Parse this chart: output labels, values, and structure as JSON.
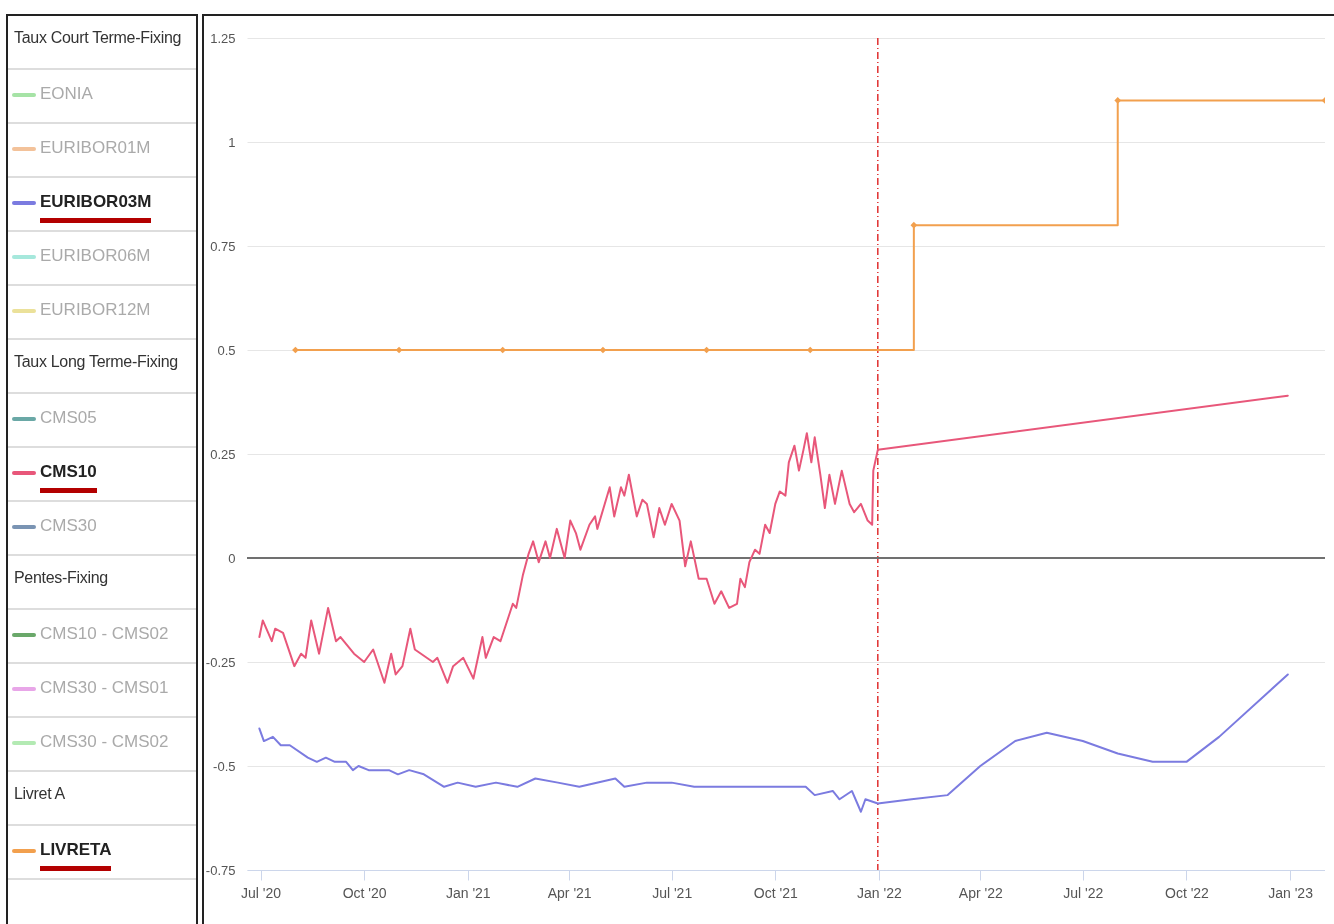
{
  "chart_data": {
    "type": "line",
    "legend": "left",
    "grid": "y",
    "annotations": [
      "Taux Court Terme-Fixing",
      "Taux Long Terme-Fixing",
      "Pentes-Fixing",
      "Livret A"
    ],
    "xlim": [
      "2020-06-19",
      "2023-02-01"
    ],
    "xticks": [
      {
        "value": "2020-07-01",
        "label": "Jul '20"
      },
      {
        "value": "2020-10-01",
        "label": "Oct '20"
      },
      {
        "value": "2021-01-01",
        "label": "Jan '21"
      },
      {
        "value": "2021-04-01",
        "label": "Apr '21"
      },
      {
        "value": "2021-07-01",
        "label": "Jul '21"
      },
      {
        "value": "2021-10-01",
        "label": "Oct '21"
      },
      {
        "value": "2022-01-01",
        "label": "Jan '22"
      },
      {
        "value": "2022-04-01",
        "label": "Apr '22"
      },
      {
        "value": "2022-07-01",
        "label": "Jul '22"
      },
      {
        "value": "2022-10-01",
        "label": "Oct '22"
      },
      {
        "value": "2023-01-01",
        "label": "Jan '23"
      }
    ],
    "ylim": [
      -0.75,
      1.25
    ],
    "yticks": [
      -0.75,
      -0.5,
      -0.25,
      0,
      0.25,
      0.5,
      0.75,
      1,
      1.25
    ],
    "ref_lines": [
      {
        "axis": "x",
        "value": "2021-12-31",
        "color": "#e03030",
        "line_style": "dashed"
      },
      {
        "axis": "y",
        "value": 0,
        "color": "#707070"
      }
    ],
    "series": [
      {
        "name": "EONIA",
        "color": "#a6e3a6"
      },
      {
        "name": "EURIBOR01M",
        "color": "#f3c29a"
      },
      {
        "name": "EURIBOR03M",
        "color": "#7b7be0",
        "x": [
          "2020-06-30",
          "2020-07-04",
          "2020-07-12",
          "2020-07-19",
          "2020-07-27",
          "2020-08-12",
          "2020-08-20",
          "2020-08-28",
          "2020-09-05",
          "2020-09-15",
          "2020-09-21",
          "2020-09-26",
          "2020-10-05",
          "2020-10-23",
          "2020-10-31",
          "2020-11-10",
          "2020-11-23",
          "2020-12-11",
          "2020-12-23",
          "2021-01-08",
          "2021-01-26",
          "2021-02-14",
          "2021-03-02",
          "2021-03-22",
          "2021-04-10",
          "2021-05-12",
          "2021-05-20",
          "2021-06-09",
          "2021-07-01",
          "2021-07-21",
          "2021-08-14",
          "2021-09-11",
          "2021-10-04",
          "2021-10-28",
          "2021-11-05",
          "2021-11-21",
          "2021-11-27",
          "2021-12-08",
          "2021-12-16",
          "2021-12-20",
          "2021-12-31",
          "2022-01-30",
          "2022-03-03",
          "2022-04-01",
          "2022-05-02",
          "2022-05-30",
          "2022-07-01",
          "2022-08-01",
          "2022-09-01",
          "2022-10-01",
          "2022-10-30",
          "2022-12-30"
        ],
        "values": [
          -0.41,
          -0.44,
          -0.43,
          -0.45,
          -0.45,
          -0.48,
          -0.49,
          -0.48,
          -0.49,
          -0.49,
          -0.51,
          -0.5,
          -0.51,
          -0.51,
          -0.52,
          -0.51,
          -0.52,
          -0.55,
          -0.54,
          -0.55,
          -0.54,
          -0.55,
          -0.53,
          -0.54,
          -0.55,
          -0.53,
          -0.55,
          -0.54,
          -0.54,
          -0.55,
          -0.55,
          -0.55,
          -0.55,
          -0.55,
          -0.57,
          -0.56,
          -0.58,
          -0.56,
          -0.61,
          -0.58,
          -0.59,
          -0.58,
          -0.57,
          -0.5,
          -0.44,
          -0.42,
          -0.44,
          -0.47,
          -0.49,
          -0.49,
          -0.43,
          -0.28
        ]
      },
      {
        "name": "EURIBOR06M",
        "color": "#a6e8dc"
      },
      {
        "name": "EURIBOR12M",
        "color": "#ebe19a"
      },
      {
        "name": "CMS05",
        "color": "#6aa8a6"
      },
      {
        "name": "CMS10",
        "color": "#e8577a",
        "x": [
          "2020-06-30",
          "2020-07-03",
          "2020-07-11",
          "2020-07-14",
          "2020-07-21",
          "2020-07-31",
          "2020-08-06",
          "2020-08-10",
          "2020-08-15",
          "2020-08-22",
          "2020-08-30",
          "2020-09-06",
          "2020-09-10",
          "2020-09-22",
          "2020-10-01",
          "2020-10-09",
          "2020-10-19",
          "2020-10-25",
          "2020-10-29",
          "2020-11-04",
          "2020-11-11",
          "2020-11-15",
          "2020-12-01",
          "2020-12-05",
          "2020-12-14",
          "2020-12-19",
          "2020-12-28",
          "2021-01-06",
          "2021-01-14",
          "2021-01-17",
          "2021-01-24",
          "2021-01-30",
          "2021-02-10",
          "2021-02-13",
          "2021-02-19",
          "2021-02-24",
          "2021-02-28",
          "2021-03-05",
          "2021-03-11",
          "2021-03-15",
          "2021-03-21",
          "2021-03-28",
          "2021-04-02",
          "2021-04-07",
          "2021-04-11",
          "2021-04-19",
          "2021-04-24",
          "2021-04-26",
          "2021-05-07",
          "2021-05-11",
          "2021-05-17",
          "2021-05-20",
          "2021-05-24",
          "2021-05-31",
          "2021-06-05",
          "2021-06-09",
          "2021-06-15",
          "2021-06-20",
          "2021-06-25",
          "2021-07-01",
          "2021-07-08",
          "2021-07-13",
          "2021-07-18",
          "2021-07-25",
          "2021-08-01",
          "2021-08-08",
          "2021-08-14",
          "2021-08-21",
          "2021-08-28",
          "2021-08-31",
          "2021-09-04",
          "2021-09-08",
          "2021-09-13",
          "2021-09-17",
          "2021-09-22",
          "2021-09-26",
          "2021-10-01",
          "2021-10-05",
          "2021-10-10",
          "2021-10-13",
          "2021-10-18",
          "2021-10-22",
          "2021-10-26",
          "2021-10-29",
          "2021-11-02",
          "2021-11-05",
          "2021-11-10",
          "2021-11-14",
          "2021-11-18",
          "2021-11-23",
          "2021-11-29",
          "2021-12-06",
          "2021-12-10",
          "2021-12-16",
          "2021-12-22",
          "2021-12-26",
          "2021-12-27",
          "2021-12-31",
          "2022-12-30"
        ],
        "values": [
          -0.19,
          -0.15,
          -0.2,
          -0.17,
          -0.18,
          -0.26,
          -0.23,
          -0.24,
          -0.15,
          -0.23,
          -0.12,
          -0.2,
          -0.19,
          -0.23,
          -0.25,
          -0.22,
          -0.3,
          -0.23,
          -0.28,
          -0.26,
          -0.17,
          -0.22,
          -0.25,
          -0.24,
          -0.3,
          -0.26,
          -0.24,
          -0.29,
          -0.19,
          -0.24,
          -0.19,
          -0.2,
          -0.11,
          -0.12,
          -0.04,
          0.01,
          0.04,
          -0.01,
          0.04,
          0,
          0.07,
          0,
          0.09,
          0.06,
          0.02,
          0.08,
          0.1,
          0.07,
          0.17,
          0.1,
          0.17,
          0.15,
          0.2,
          0.1,
          0.14,
          0.13,
          0.05,
          0.12,
          0.08,
          0.13,
          0.09,
          -0.02,
          0.04,
          -0.05,
          -0.05,
          -0.11,
          -0.08,
          -0.12,
          -0.11,
          -0.05,
          -0.07,
          -0.01,
          0.02,
          0.01,
          0.08,
          0.06,
          0.13,
          0.16,
          0.15,
          0.23,
          0.27,
          0.21,
          0.26,
          0.3,
          0.23,
          0.29,
          0.2,
          0.12,
          0.2,
          0.13,
          0.21,
          0.13,
          0.11,
          0.13,
          0.09,
          0.08,
          0.21,
          0.26,
          0.39
        ]
      },
      {
        "name": "CMS30",
        "color": "#7a94b3"
      },
      {
        "name": "CMS10 - CMS02",
        "color": "#6aa86a"
      },
      {
        "name": "CMS30 - CMS01",
        "color": "#e8a6e8"
      },
      {
        "name": "CMS30 - CMS02",
        "color": "#b3eab3"
      },
      {
        "name": "LIVRETA",
        "color": "#f2a04e",
        "type": "step",
        "marker": "diamond",
        "x": [
          "2020-08-01",
          "2020-11-01",
          "2021-02-01",
          "2021-05-01",
          "2021-08-01",
          "2021-11-01",
          "2022-02-01",
          "2022-08-01",
          "2023-02-01"
        ],
        "values": [
          0.5,
          0.5,
          0.5,
          0.5,
          0.5,
          0.5,
          0.8,
          1.1,
          1.1
        ]
      }
    ]
  }
}
